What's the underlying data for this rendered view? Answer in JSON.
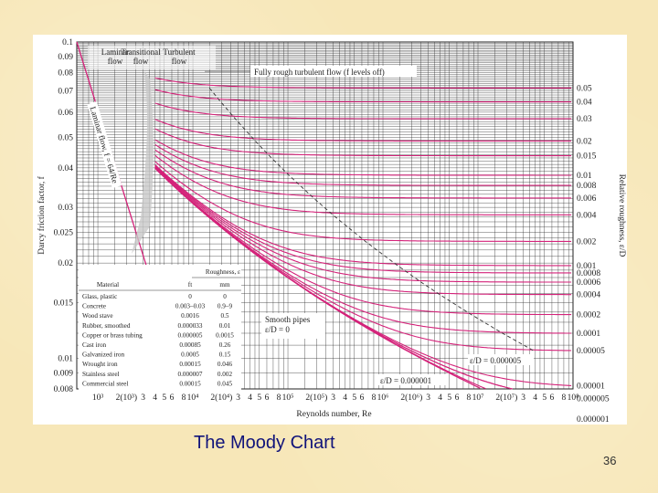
{
  "slide": {
    "title": "The Moody Chart",
    "number": "36"
  },
  "chart_data": {
    "type": "line",
    "title": "",
    "xlabel": "Reynolds number, Re",
    "ylabel": "Darcy friction factor, f",
    "y2label": "Relative roughness, ε/D",
    "x_scale": "log",
    "y_scale": "log",
    "xlim": [
      600,
      100000000
    ],
    "ylim": [
      0.008,
      0.1
    ],
    "grid": true,
    "y_tick_labels": [
      "0.1",
      "0.09",
      "0.08",
      "0.07",
      "0.06",
      "0.05",
      "0.04",
      "0.03",
      "0.025",
      "0.02",
      "0.015",
      "0.01",
      "0.009",
      "0.008"
    ],
    "y_tick_values": [
      0.1,
      0.09,
      0.08,
      0.07,
      0.06,
      0.05,
      0.04,
      0.03,
      0.025,
      0.02,
      0.015,
      0.01,
      0.009,
      0.008
    ],
    "x_tick_labels": [
      {
        "v": 1000,
        "t": "10³"
      },
      {
        "v": 2000,
        "t": "2(10³)"
      },
      {
        "v": 3000,
        "t": "3"
      },
      {
        "v": 4000,
        "t": "4"
      },
      {
        "v": 5000,
        "t": "5"
      },
      {
        "v": 6000,
        "t": "6"
      },
      {
        "v": 8000,
        "t": "8"
      },
      {
        "v": 10000,
        "t": "10⁴"
      },
      {
        "v": 20000,
        "t": "2(10⁴)"
      },
      {
        "v": 30000,
        "t": "3"
      },
      {
        "v": 40000,
        "t": "4"
      },
      {
        "v": 50000,
        "t": "5"
      },
      {
        "v": 60000,
        "t": "6"
      },
      {
        "v": 80000,
        "t": "8"
      },
      {
        "v": 100000,
        "t": "10⁵"
      },
      {
        "v": 200000,
        "t": "2(10⁵)"
      },
      {
        "v": 300000,
        "t": "3"
      },
      {
        "v": 400000,
        "t": "4"
      },
      {
        "v": 500000,
        "t": "5"
      },
      {
        "v": 600000,
        "t": "6"
      },
      {
        "v": 800000,
        "t": "8"
      },
      {
        "v": 1000000,
        "t": "10⁶"
      },
      {
        "v": 2000000,
        "t": "2(10⁶)"
      },
      {
        "v": 3000000,
        "t": "3"
      },
      {
        "v": 4000000,
        "t": "4"
      },
      {
        "v": 5000000,
        "t": "5"
      },
      {
        "v": 6000000,
        "t": "6"
      },
      {
        "v": 8000000,
        "t": "8"
      },
      {
        "v": 10000000,
        "t": "10⁷"
      },
      {
        "v": 20000000,
        "t": "2(10⁷)"
      },
      {
        "v": 30000000,
        "t": "3"
      },
      {
        "v": 40000000,
        "t": "4"
      },
      {
        "v": 50000000,
        "t": "5"
      },
      {
        "v": 60000000,
        "t": "6"
      },
      {
        "v": 80000000,
        "t": "8"
      },
      {
        "v": 100000000,
        "t": "10⁸"
      }
    ],
    "relative_roughness": [
      {
        "v": 0.05,
        "t": "0.05"
      },
      {
        "v": 0.04,
        "t": "0.04"
      },
      {
        "v": 0.03,
        "t": "0.03"
      },
      {
        "v": 0.02,
        "t": "0.02"
      },
      {
        "v": 0.015,
        "t": "0.015"
      },
      {
        "v": 0.01,
        "t": "0.01"
      },
      {
        "v": 0.008,
        "t": "0.008"
      },
      {
        "v": 0.006,
        "t": "0.006"
      },
      {
        "v": 0.004,
        "t": "0.004"
      },
      {
        "v": 0.002,
        "t": "0.002"
      },
      {
        "v": 0.001,
        "t": "0.001"
      },
      {
        "v": 0.0008,
        "t": "0.0008"
      },
      {
        "v": 0.0006,
        "t": "0.0006"
      },
      {
        "v": 0.0004,
        "t": "0.0004"
      },
      {
        "v": 0.0002,
        "t": "0.0002"
      },
      {
        "v": 0.0001,
        "t": "0.0001"
      },
      {
        "v": 5e-05,
        "t": "0.00005"
      },
      {
        "v": 1e-05,
        "t": "0.00001"
      },
      {
        "v": 5e-06,
        "t": "0.000005"
      },
      {
        "v": 1e-06,
        "t": "0.000001"
      }
    ],
    "extra_roughness_curve_values": [
      5e-06
    ],
    "curve_color": "#d4237a",
    "laminar": {
      "label": "Laminar flow, f = 64/Re",
      "re_min": 600,
      "re_max": 4000,
      "formula_constant": 64
    },
    "regions": {
      "laminar": "Laminar\nflow",
      "transitional": "Transitional\nflow",
      "turbulent": "Turbulent\nflow"
    },
    "annotations": {
      "fully_rough": "Fully rough turbulent flow (f levels off)",
      "smooth_pipes": "Smooth pipes\nε/D = 0",
      "ed_000001": "ε/D = 0.000001",
      "ed_0000005": "ε/D = 0.000005"
    },
    "table": {
      "group_header": "Roughness, ε",
      "headers": [
        "Material",
        "ft",
        "mm"
      ],
      "rows": [
        [
          "Glass, plastic",
          "0",
          "0"
        ],
        [
          "Concrete",
          "0.003–0.03",
          "0.9–9"
        ],
        [
          "Wood stave",
          "0.0016",
          "0.5"
        ],
        [
          "Rubber, smoothed",
          "0.000033",
          "0.01"
        ],
        [
          "Copper or brass tubing",
          "0.000005",
          "0.0015"
        ],
        [
          "Cast iron",
          "0.00085",
          "0.26"
        ],
        [
          "Galvanized iron",
          "0.0005",
          "0.15"
        ],
        [
          "Wrought iron",
          "0.00015",
          "0.046"
        ],
        [
          "Stainless steel",
          "0.000007",
          "0.002"
        ],
        [
          "Commercial steel",
          "0.00015",
          "0.045"
        ]
      ]
    }
  }
}
